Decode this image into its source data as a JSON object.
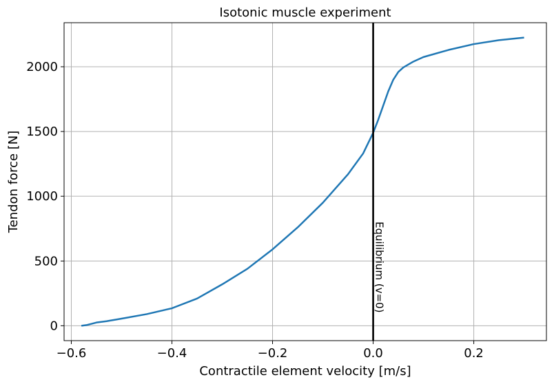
{
  "chart_data": {
    "type": "line",
    "title": "Isotonic muscle experiment",
    "xlabel": "Contractile element velocity [m/s]",
    "ylabel": "Tendon force [N]",
    "xlim": [
      -0.6144,
      0.3444
    ],
    "ylim": [
      -115,
      2340
    ],
    "grid": true,
    "x_ticks": [
      -0.6,
      -0.4,
      -0.2,
      0.0,
      0.2
    ],
    "x_tick_labels": [
      "−0.6",
      "−0.4",
      "−0.2",
      "0.0",
      "0.2"
    ],
    "y_ticks": [
      0,
      500,
      1000,
      1500,
      2000
    ],
    "y_tick_labels": [
      "0",
      "500",
      "1000",
      "1500",
      "2000"
    ],
    "series": [
      {
        "color": "#1f77b4",
        "x": [
          -0.58,
          -0.57,
          -0.56,
          -0.55,
          -0.53,
          -0.5,
          -0.45,
          -0.4,
          -0.35,
          -0.3,
          -0.25,
          -0.2,
          -0.15,
          -0.1,
          -0.05,
          -0.02,
          0.0,
          0.01,
          0.02,
          0.03,
          0.04,
          0.05,
          0.06,
          0.08,
          0.1,
          0.15,
          0.2,
          0.25,
          0.3
        ],
        "y": [
          0,
          5,
          15,
          25,
          35,
          55,
          90,
          135,
          210,
          320,
          440,
          590,
          760,
          950,
          1170,
          1330,
          1490,
          1590,
          1700,
          1810,
          1900,
          1960,
          1995,
          2040,
          2075,
          2130,
          2175,
          2205,
          2225
        ]
      }
    ],
    "annotations": [
      {
        "type": "vline",
        "x": 0.0,
        "color": "#000000",
        "label": "Equilibrium (v=0)"
      }
    ]
  }
}
